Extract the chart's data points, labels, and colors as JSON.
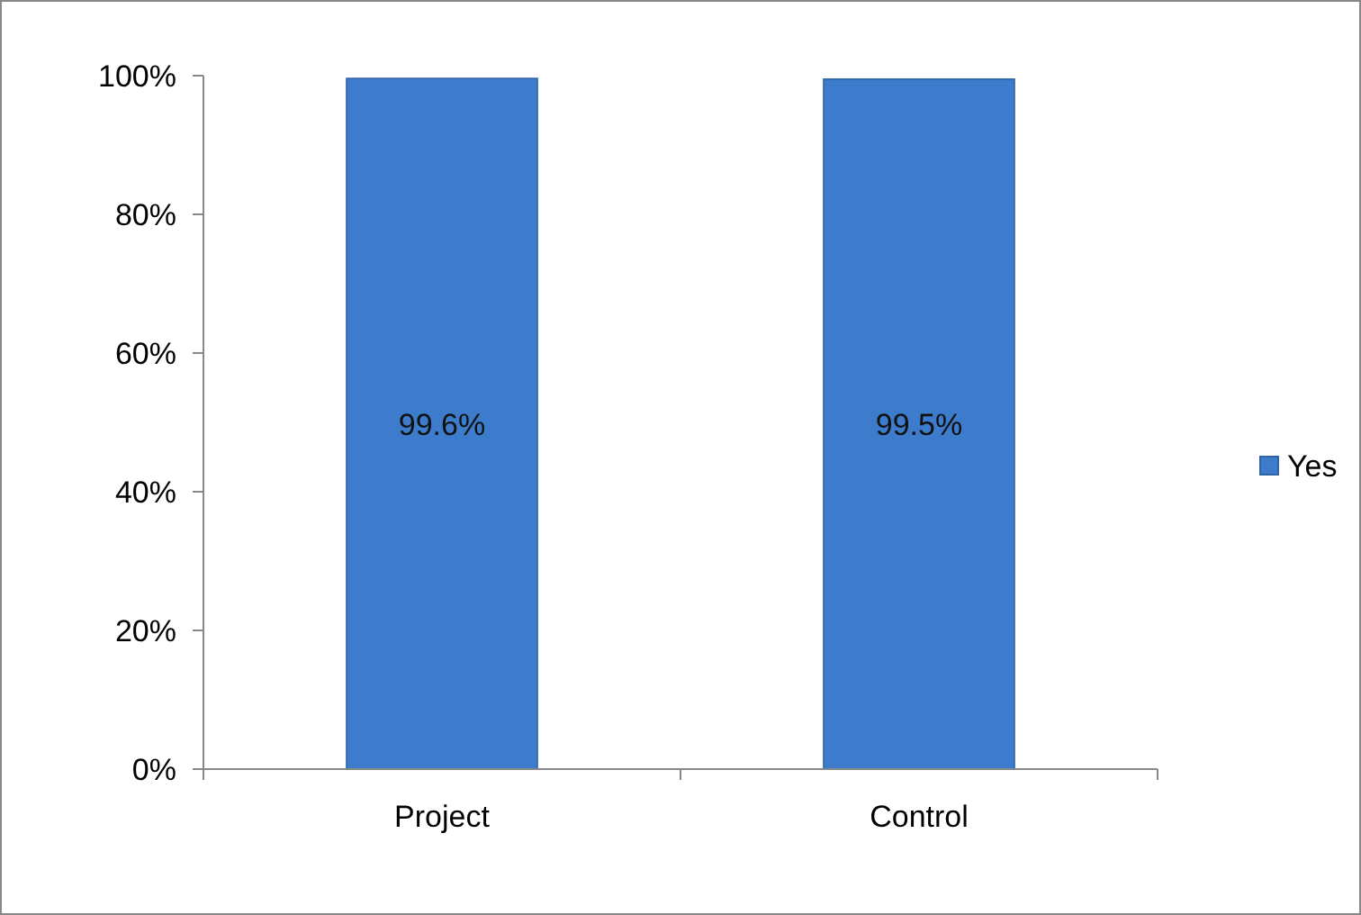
{
  "chart_data": {
    "type": "bar",
    "categories": [
      "Project",
      "Control"
    ],
    "series": [
      {
        "name": "Yes",
        "color": "#3d7ccc",
        "values": [
          99.6,
          99.5
        ],
        "value_labels": [
          "99.6%",
          "99.5%"
        ]
      }
    ],
    "ylim": [
      0,
      100
    ],
    "yticks": [
      {
        "value": 0,
        "label": "0%"
      },
      {
        "value": 20,
        "label": "20%"
      },
      {
        "value": 40,
        "label": "40%"
      },
      {
        "value": 60,
        "label": "60%"
      },
      {
        "value": 80,
        "label": "80%"
      },
      {
        "value": 100,
        "label": "100%"
      }
    ],
    "grid": false,
    "legend": "right"
  }
}
